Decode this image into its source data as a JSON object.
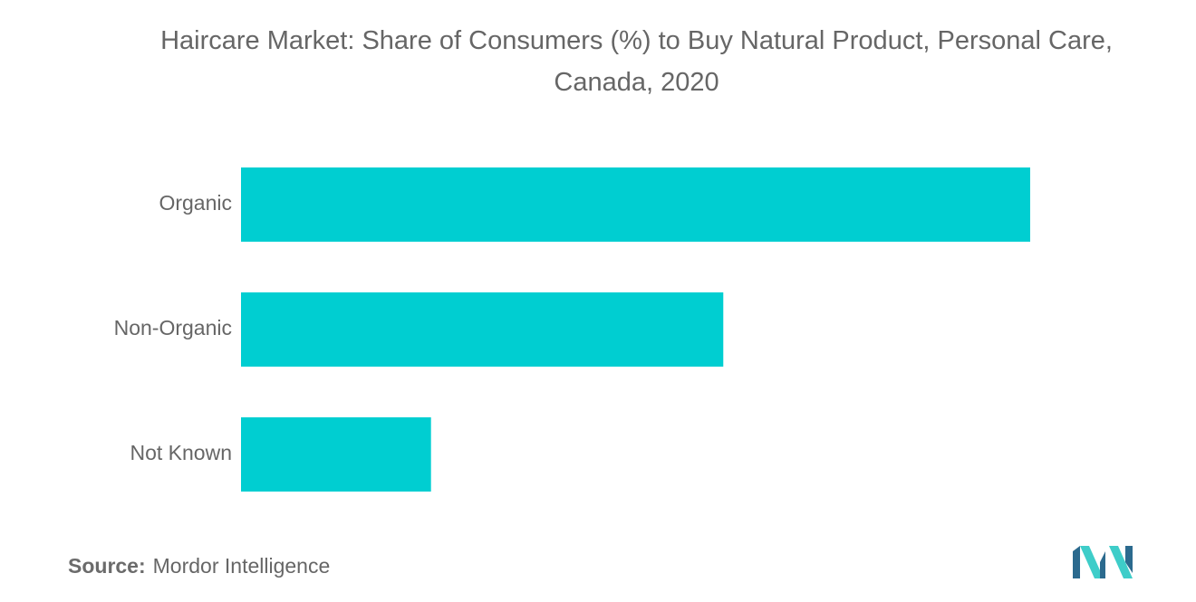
{
  "chart_data": {
    "type": "bar",
    "orientation": "horizontal",
    "title": "Haircare Market: Share of Consumers (%) to Buy Natural Product, Personal Care, Canada, 2020",
    "title_lines": [
      "Haircare Market: Share of Consumers (%) to Buy Natural Product, Personal Care,",
      "Canada, 2020"
    ],
    "categories": [
      "Organic",
      "Non-Organic",
      "Not Known"
    ],
    "values": [
      54,
      33,
      13
    ],
    "xlabel": "",
    "ylabel": "",
    "xlim": [
      0,
      54
    ],
    "grid": false,
    "legend": "none",
    "bar_color": "#00ced1"
  },
  "footer": {
    "source_label": "Source:",
    "source_value": "Mordor Intelligence"
  },
  "logo": {
    "icon": "mordor-intelligence-logo-icon",
    "colors": [
      "#2b6a8e",
      "#3ecdc9"
    ]
  }
}
